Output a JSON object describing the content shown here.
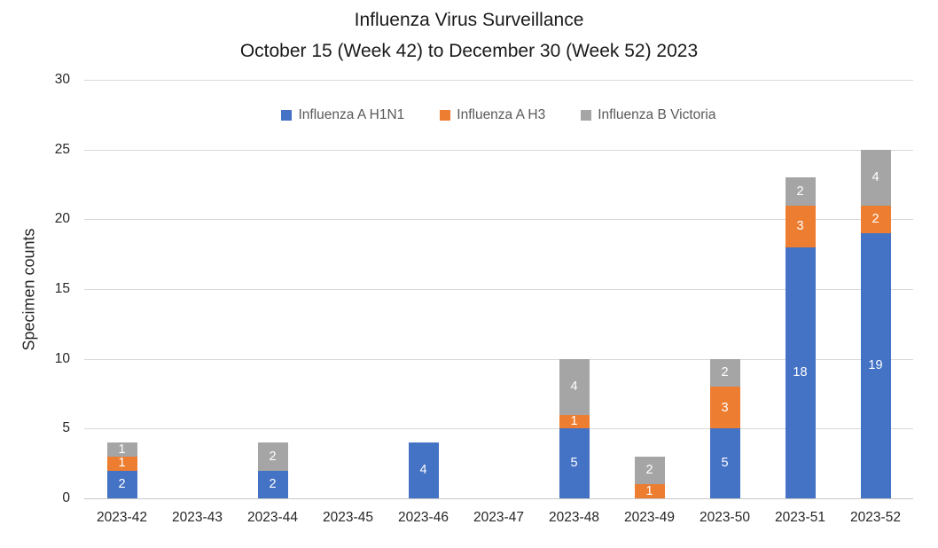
{
  "title": {
    "line1": "Influenza Virus Surveillance",
    "line2": "October 15 (Week 42) to December 30 (Week 52) 2023"
  },
  "chart_data": {
    "type": "bar",
    "stacked": true,
    "title": "Influenza Virus Surveillance October 15 (Week 42) to December 30 (Week 52) 2023",
    "categories": [
      "2023-42",
      "2023-43",
      "2023-44",
      "2023-45",
      "2023-46",
      "2023-47",
      "2023-48",
      "2023-49",
      "2023-50",
      "2023-51",
      "2023-52"
    ],
    "series": [
      {
        "name": "Influenza A H1N1",
        "color": "#4472C4",
        "values": [
          2,
          0,
          2,
          0,
          4,
          0,
          5,
          0,
          5,
          18,
          19
        ]
      },
      {
        "name": "Influenza A H3",
        "color": "#ED7D31",
        "values": [
          1,
          0,
          0,
          0,
          0,
          0,
          1,
          1,
          3,
          3,
          2
        ]
      },
      {
        "name": "Influenza B Victoria",
        "color": "#A5A5A5",
        "values": [
          1,
          0,
          2,
          0,
          0,
          0,
          4,
          2,
          2,
          2,
          4
        ]
      }
    ],
    "totals": [
      4,
      0,
      4,
      0,
      4,
      0,
      10,
      3,
      10,
      23,
      25
    ],
    "xlabel": "",
    "ylabel": "Specimen counts",
    "ylim": [
      0,
      30
    ],
    "ytick_interval": 5,
    "yticks": [
      0,
      5,
      10,
      15,
      20,
      25,
      30
    ],
    "grid": true,
    "legend_position": "top-center",
    "data_labels": "white values shown inside segments when value > 0"
  },
  "colors": {
    "series_blue": "#4472C4",
    "series_orange": "#ED7D31",
    "series_gray": "#A5A5A5",
    "gridline": "#D9D9D9",
    "axis_text": "#262626",
    "legend_text": "#595959",
    "background": "#FFFFFF"
  }
}
